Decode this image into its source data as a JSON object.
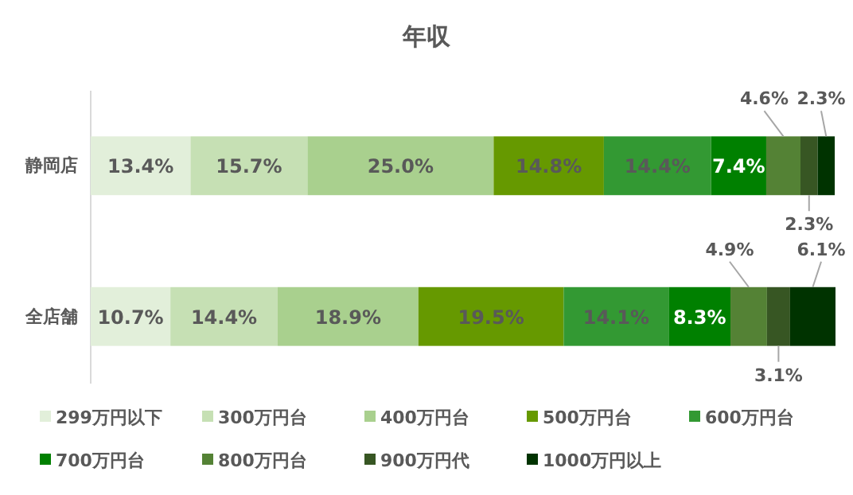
{
  "chart_data": {
    "type": "bar",
    "title": "年収",
    "orientation": "horizontal",
    "stacked": true,
    "legend": "bottom",
    "categories": [
      "静岡店",
      "全店舗"
    ],
    "series": [
      {
        "name": "299万円以下",
        "color": "#e2efda",
        "values": [
          13.4,
          10.7
        ],
        "value_labels": [
          "13.4%",
          "10.7%"
        ]
      },
      {
        "name": "300万円台",
        "color": "#c6e0b4",
        "values": [
          15.7,
          14.4
        ],
        "value_labels": [
          "15.7%",
          "14.4%"
        ]
      },
      {
        "name": "400万円台",
        "color": "#a9d08e",
        "values": [
          25.0,
          18.9
        ],
        "value_labels": [
          "25.0%",
          "18.9%"
        ]
      },
      {
        "name": "500万円台",
        "color": "#669900",
        "values": [
          14.8,
          19.5
        ],
        "value_labels": [
          "14.8%",
          "19.5%"
        ]
      },
      {
        "name": "600万円台",
        "color": "#339933",
        "values": [
          14.4,
          14.1
        ],
        "value_labels": [
          "14.4%",
          "14.1%"
        ]
      },
      {
        "name": "700万円台",
        "color": "#008000",
        "values": [
          7.4,
          8.3
        ],
        "value_labels": [
          "7.4%",
          "8.3%"
        ]
      },
      {
        "name": "800万円台",
        "color": "#548235",
        "values": [
          4.6,
          4.9
        ],
        "value_labels": [
          "4.6%",
          "4.9%"
        ]
      },
      {
        "name": "900万円代",
        "color": "#375623",
        "values": [
          2.3,
          3.1
        ],
        "value_labels": [
          "2.3%",
          "3.1%"
        ]
      },
      {
        "name": "1000万円以上",
        "color": "#003300",
        "values": [
          2.3,
          6.1
        ],
        "value_labels": [
          "2.3%",
          "6.1%"
        ]
      }
    ]
  }
}
